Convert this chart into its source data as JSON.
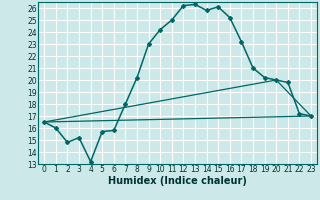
{
  "title": "",
  "xlabel": "Humidex (Indice chaleur)",
  "bg_color": "#cce8e8",
  "grid_color": "#ffffff",
  "line_color": "#006666",
  "xlim": [
    -0.5,
    23.5
  ],
  "ylim": [
    13,
    26.5
  ],
  "xticks": [
    0,
    1,
    2,
    3,
    4,
    5,
    6,
    7,
    8,
    9,
    10,
    11,
    12,
    13,
    14,
    15,
    16,
    17,
    18,
    19,
    20,
    21,
    22,
    23
  ],
  "yticks": [
    13,
    14,
    15,
    16,
    17,
    18,
    19,
    20,
    21,
    22,
    23,
    24,
    25,
    26
  ],
  "line1_x": [
    0,
    1,
    2,
    3,
    4,
    5,
    6,
    7,
    8,
    9,
    10,
    11,
    12,
    13,
    14,
    15,
    16,
    17,
    18,
    19,
    20,
    21,
    22,
    23
  ],
  "line1_y": [
    16.5,
    16.0,
    14.8,
    15.2,
    13.2,
    15.7,
    15.8,
    18.0,
    20.2,
    23.0,
    24.2,
    25.0,
    26.2,
    26.3,
    25.8,
    26.1,
    25.2,
    23.2,
    21.0,
    20.2,
    20.0,
    19.8,
    17.2,
    17.0
  ],
  "line2_x": [
    0,
    23
  ],
  "line2_y": [
    16.5,
    17.0
  ],
  "line3_x": [
    0,
    20,
    23
  ],
  "line3_y": [
    16.5,
    20.0,
    17.0
  ],
  "xlabel_fontsize": 7,
  "tick_fontsize": 5.5
}
